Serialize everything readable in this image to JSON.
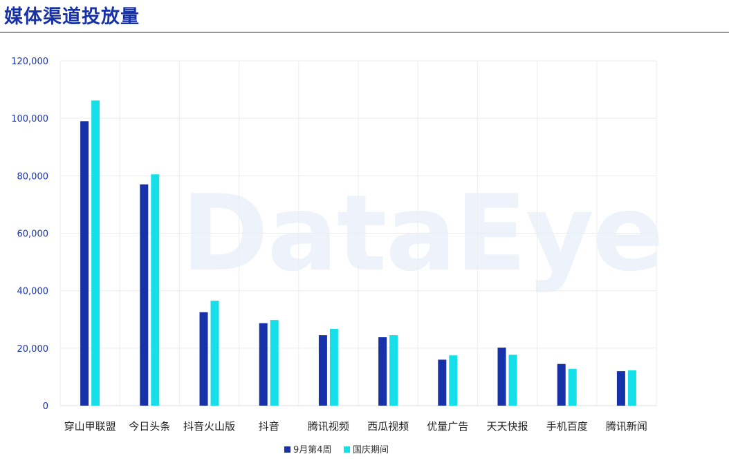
{
  "header": {
    "title": "媒体渠道投放量"
  },
  "watermark": "DataEye",
  "colors": {
    "series1": "#1731a8",
    "series2": "#17dfe9",
    "grid": "#ececec",
    "title": "#1731a8"
  },
  "chart_data": {
    "type": "bar",
    "title": "",
    "xlabel": "",
    "ylabel": "",
    "ylim": [
      0,
      120000
    ],
    "yticks": [
      "0",
      "20,000",
      "40,000",
      "60,000",
      "80,000",
      "100,000",
      "120,000"
    ],
    "grid": true,
    "legend_position": "bottom-center",
    "categories": [
      "穿山甲联盟",
      "今日头条",
      "抖音火山版",
      "抖音",
      "腾讯视频",
      "西瓜视频",
      "优量广告",
      "天天快报",
      "手机百度",
      "腾讯新闻"
    ],
    "series": [
      {
        "name": "9月第4周",
        "values": [
          99000,
          77000,
          32500,
          28700,
          24500,
          23800,
          16000,
          20200,
          14500,
          12000
        ]
      },
      {
        "name": "国庆期间",
        "values": [
          106200,
          80500,
          36500,
          29800,
          26700,
          24500,
          17500,
          17700,
          12800,
          12300
        ]
      }
    ]
  }
}
